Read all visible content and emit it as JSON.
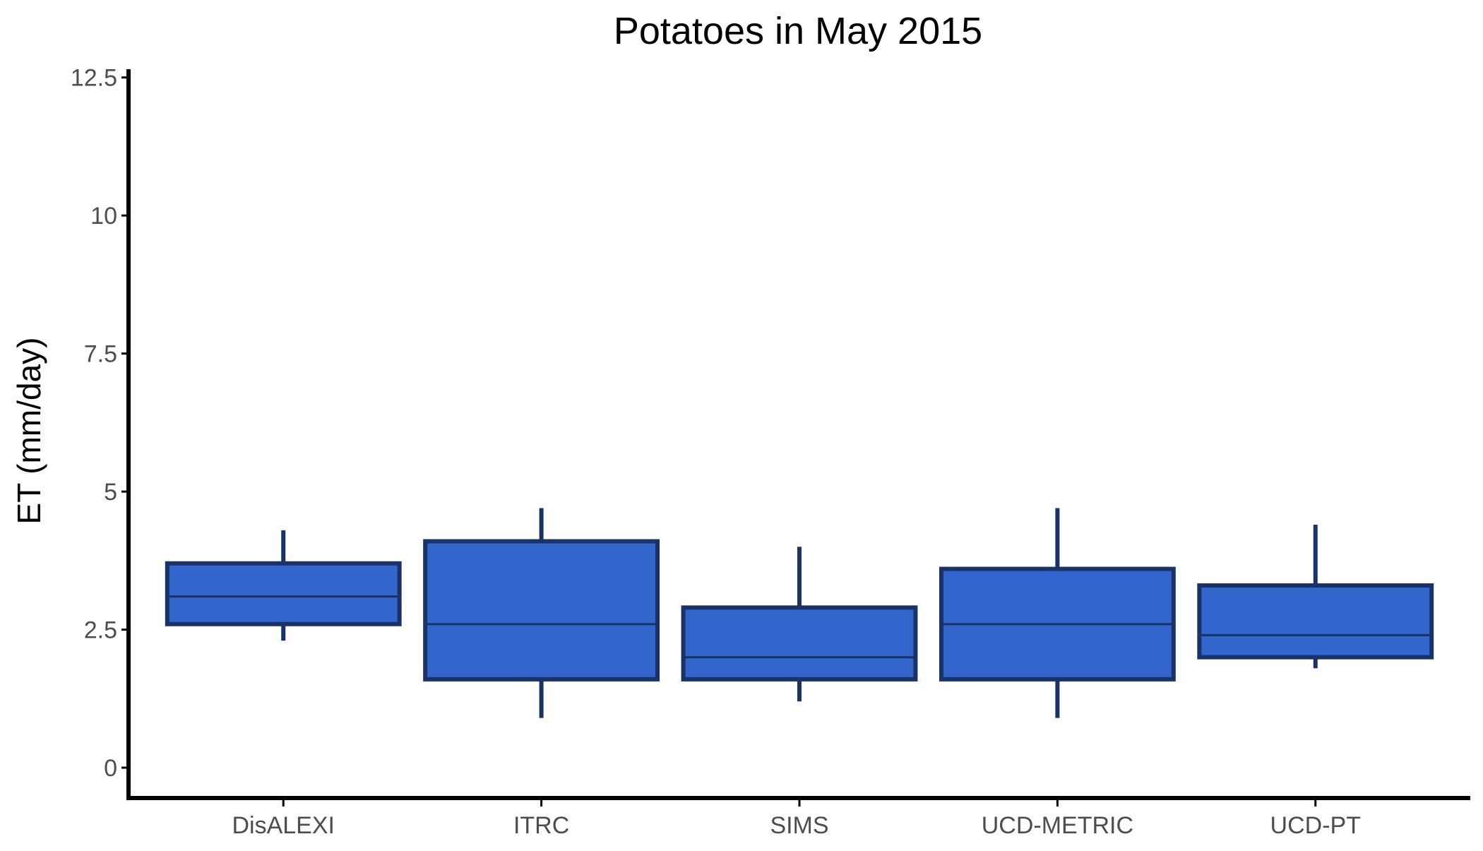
{
  "chart_data": {
    "type": "boxplot",
    "title": "Potatoes in May 2015",
    "xlabel": "",
    "ylabel": "ET (mm/day)",
    "ylim": [
      -0.55,
      12.65
    ],
    "yticks": [
      0,
      2.5,
      5,
      7.5,
      10,
      12.5
    ],
    "ytick_labels": [
      "0",
      "2.5",
      "5",
      "7.5",
      "10",
      "12.5"
    ],
    "categories": [
      "DisALEXI",
      "ITRC",
      "SIMS",
      "UCD-METRIC",
      "UCD-PT"
    ],
    "boxes": [
      {
        "name": "DisALEXI",
        "whisker_low": 2.3,
        "q1": 2.6,
        "median": 3.1,
        "q3": 3.7,
        "whisker_high": 4.3
      },
      {
        "name": "ITRC",
        "whisker_low": 0.9,
        "q1": 1.6,
        "median": 2.6,
        "q3": 4.1,
        "whisker_high": 4.7
      },
      {
        "name": "SIMS",
        "whisker_low": 1.2,
        "q1": 1.6,
        "median": 2.0,
        "q3": 2.9,
        "whisker_high": 4.0
      },
      {
        "name": "UCD-METRIC",
        "whisker_low": 0.9,
        "q1": 1.6,
        "median": 2.6,
        "q3": 3.6,
        "whisker_high": 4.7
      },
      {
        "name": "UCD-PT",
        "whisker_low": 1.8,
        "q1": 2.0,
        "median": 2.4,
        "q3": 3.3,
        "whisker_high": 4.4
      }
    ],
    "grid": false,
    "legend": "none",
    "colors": {
      "box_fill": "#3366cc",
      "box_edge": "#1a3266",
      "axis": "#000000"
    }
  }
}
